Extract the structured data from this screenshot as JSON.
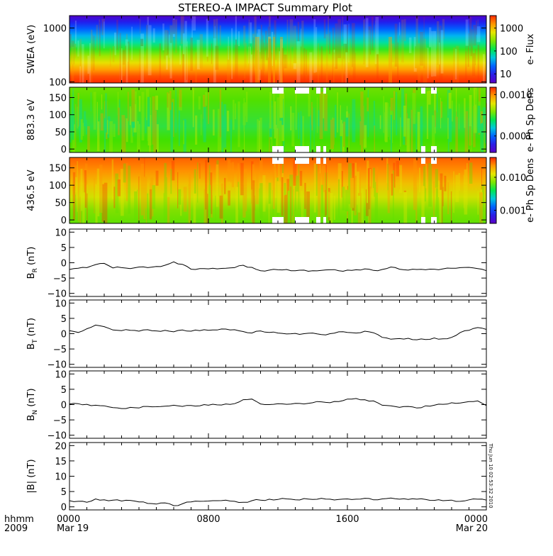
{
  "title": "STEREO-A IMPACT Summary Plot",
  "stamp": "Thu Jun 10 02:53:32 2010",
  "colors": {
    "ink": "#000000",
    "background": "#ffffff",
    "colormap": [
      "#5a00c8",
      "#2a1ee6",
      "#0064ff",
      "#00c8dc",
      "#00e650",
      "#7ee600",
      "#e6e600",
      "#ff9600",
      "#ff2800"
    ]
  },
  "x_axis": {
    "corner_top": "hhmm",
    "corner_bottom": "2009",
    "ticks": [
      {
        "value": 0,
        "top": "0000",
        "bottom": "Mar 19"
      },
      {
        "value": 8,
        "top": "0800",
        "bottom": ""
      },
      {
        "value": 16,
        "top": "1600",
        "bottom": ""
      },
      {
        "value": 24,
        "top": "0000",
        "bottom": "Mar 20"
      }
    ],
    "range": [
      0,
      24
    ]
  },
  "chart_data": [
    {
      "type": "heatmap",
      "ylabel": "SWEA (eV)",
      "yscale": "log",
      "ylim": [
        95,
        1700
      ],
      "yticks": [
        {
          "value": 100,
          "label": "100"
        },
        {
          "value": 1000,
          "label": "1000"
        }
      ],
      "colorbar_label": "e- Flux",
      "colorbar_scale": "log",
      "colorbar_range": [
        4,
        3500
      ],
      "colorbar_ticks": [
        {
          "value": 10,
          "label": "10"
        },
        {
          "value": 100,
          "label": "100"
        },
        {
          "value": 1000,
          "label": "1000"
        }
      ]
    },
    {
      "type": "heatmap",
      "ylabel": "883.3 eV",
      "ylim": [
        -10,
        180
      ],
      "yticks": [
        {
          "value": 0,
          "label": "0"
        },
        {
          "value": 50,
          "label": "50"
        },
        {
          "value": 100,
          "label": "100"
        },
        {
          "value": 150,
          "label": "150"
        }
      ],
      "colorbar_label": "e- Ph Sp Dens",
      "colorbar_scale": "log",
      "colorbar_range": [
        4e-05,
        0.0015
      ],
      "colorbar_ticks": [
        {
          "value": 0.0001,
          "label": "0.0001"
        },
        {
          "value": 0.001,
          "label": "0.0010"
        }
      ]
    },
    {
      "type": "heatmap",
      "ylabel": "436.5 eV",
      "ylim": [
        -10,
        180
      ],
      "yticks": [
        {
          "value": 0,
          "label": "0"
        },
        {
          "value": 50,
          "label": "50"
        },
        {
          "value": 100,
          "label": "100"
        },
        {
          "value": 150,
          "label": "150"
        }
      ],
      "colorbar_label": "e- Ph Sp Dens",
      "colorbar_scale": "log",
      "colorbar_range": [
        0.0004,
        0.04
      ],
      "colorbar_ticks": [
        {
          "value": 0.001,
          "label": "0.001"
        },
        {
          "value": 0.01,
          "label": "0.010"
        }
      ]
    },
    {
      "type": "line",
      "ylabel": "B_R (nT)",
      "ylabel_main": "B",
      "ylabel_sub": "R",
      "ylabel_unit": " (nT)",
      "ylim": [
        -11,
        11
      ],
      "yticks": [
        {
          "value": -10,
          "label": "−10"
        },
        {
          "value": -5,
          "label": "−5"
        },
        {
          "value": 0,
          "label": "0"
        },
        {
          "value": 5,
          "label": "5"
        },
        {
          "value": 10,
          "label": "10"
        }
      ],
      "x": [
        0,
        0.5,
        1,
        1.5,
        2,
        2.5,
        3,
        3.5,
        4,
        4.5,
        5,
        5.5,
        6,
        6.5,
        7,
        7.5,
        8,
        8.5,
        9,
        9.5,
        10,
        10.5,
        11,
        11.5,
        12,
        12.5,
        13,
        13.5,
        14,
        14.5,
        15,
        15.5,
        16,
        16.5,
        17,
        17.5,
        18,
        18.5,
        19,
        19.5,
        20,
        20.5,
        21,
        21.5,
        22,
        22.5,
        23,
        23.5,
        24
      ],
      "y": [
        -2.2,
        -1.8,
        -1.6,
        -0.6,
        -0.2,
        -1.7,
        -1.6,
        -1.9,
        -1.4,
        -1.6,
        -1.2,
        -0.8,
        0.3,
        -0.5,
        -2.1,
        -1.9,
        -2.0,
        -2.0,
        -1.8,
        -1.6,
        -0.8,
        -1.5,
        -2.6,
        -2.4,
        -2.3,
        -2.2,
        -2.6,
        -2.4,
        -2.6,
        -2.5,
        -2.3,
        -2.6,
        -2.4,
        -2.3,
        -2.0,
        -2.5,
        -2.2,
        -1.4,
        -2.1,
        -2.4,
        -2.2,
        -2.3,
        -2.1,
        -2.0,
        -1.8,
        -1.6,
        -1.5,
        -1.9,
        -2.6
      ]
    },
    {
      "type": "line",
      "ylabel": "B_T (nT)",
      "ylabel_main": "B",
      "ylabel_sub": "T",
      "ylabel_unit": " (nT)",
      "ylim": [
        -11,
        11
      ],
      "yticks": [
        {
          "value": -10,
          "label": "−10"
        },
        {
          "value": -5,
          "label": "−5"
        },
        {
          "value": 0,
          "label": "0"
        },
        {
          "value": 5,
          "label": "5"
        },
        {
          "value": 10,
          "label": "10"
        }
      ],
      "x": [
        0,
        0.5,
        1,
        1.5,
        2,
        2.5,
        3,
        3.5,
        4,
        4.5,
        5,
        5.5,
        6,
        6.5,
        7,
        7.5,
        8,
        8.5,
        9,
        9.5,
        10,
        10.5,
        11,
        11.5,
        12,
        12.5,
        13,
        13.5,
        14,
        14.5,
        15,
        15.5,
        16,
        16.5,
        17,
        17.5,
        18,
        18.5,
        19,
        19.5,
        20,
        20.5,
        21,
        21.5,
        22,
        22.5,
        23,
        23.5,
        24
      ],
      "y": [
        1.0,
        0.4,
        1.6,
        2.8,
        2.3,
        1.2,
        1.0,
        1.1,
        0.8,
        1.3,
        0.9,
        1.1,
        0.6,
        1.2,
        0.8,
        1.0,
        1.1,
        1.2,
        1.5,
        1.3,
        0.7,
        0.2,
        0.9,
        0.4,
        0.2,
        -0.1,
        0.1,
        0.0,
        0.2,
        -0.3,
        0.0,
        0.6,
        0.4,
        0.2,
        0.8,
        0.3,
        -1.2,
        -1.8,
        -1.6,
        -1.5,
        -2.0,
        -1.9,
        -1.4,
        -1.7,
        -1.2,
        0.4,
        1.1,
        2.0,
        1.4
      ]
    },
    {
      "type": "line",
      "ylabel": "B_N (nT)",
      "ylabel_main": "B",
      "ylabel_sub": "N",
      "ylabel_unit": " (nT)",
      "ylim": [
        -11,
        11
      ],
      "yticks": [
        {
          "value": -10,
          "label": "−10"
        },
        {
          "value": -5,
          "label": "−5"
        },
        {
          "value": 0,
          "label": "0"
        },
        {
          "value": 5,
          "label": "5"
        },
        {
          "value": 10,
          "label": "10"
        }
      ],
      "x": [
        0,
        0.5,
        1,
        1.5,
        2,
        2.5,
        3,
        3.5,
        4,
        4.5,
        5,
        5.5,
        6,
        6.5,
        7,
        7.5,
        8,
        8.5,
        9,
        9.5,
        10,
        10.5,
        11,
        11.5,
        12,
        12.5,
        13,
        13.5,
        14,
        14.5,
        15,
        15.5,
        16,
        16.5,
        17,
        17.5,
        18,
        18.5,
        19,
        19.5,
        20,
        20.5,
        21,
        21.5,
        22,
        22.5,
        23,
        23.5,
        24
      ],
      "y": [
        0.2,
        0.3,
        0.1,
        -0.2,
        -0.4,
        -1.0,
        -1.3,
        -0.9,
        -1.1,
        -0.6,
        -0.7,
        -0.5,
        -0.2,
        -0.6,
        -0.3,
        -0.4,
        -0.2,
        -0.1,
        0.2,
        0.3,
        1.6,
        1.8,
        0.2,
        0.0,
        0.3,
        0.1,
        0.4,
        0.2,
        0.6,
        0.9,
        0.6,
        1.0,
        1.8,
        2.0,
        1.6,
        1.2,
        -0.2,
        -0.4,
        -0.9,
        -0.6,
        -1.1,
        -0.4,
        -0.2,
        0.1,
        0.6,
        0.5,
        1.0,
        1.2,
        -0.3
      ]
    },
    {
      "type": "line",
      "ylabel": "|B| (nT)",
      "ylabel_main": "|B|",
      "ylabel_sub": "",
      "ylabel_unit": " (nT)",
      "ylim": [
        -1,
        21
      ],
      "yticks": [
        {
          "value": 0,
          "label": "0"
        },
        {
          "value": 5,
          "label": "5"
        },
        {
          "value": 10,
          "label": "10"
        },
        {
          "value": 15,
          "label": "15"
        },
        {
          "value": 20,
          "label": "20"
        }
      ],
      "x": [
        0,
        0.5,
        1,
        1.5,
        2,
        2.5,
        3,
        3.5,
        4,
        4.5,
        5,
        5.5,
        6,
        6.5,
        7,
        7.5,
        8,
        8.5,
        9,
        9.5,
        10,
        10.5,
        11,
        11.5,
        12,
        12.5,
        13,
        13.5,
        14,
        14.5,
        15,
        15.5,
        16,
        16.5,
        17,
        17.5,
        18,
        18.5,
        19,
        19.5,
        20,
        20.5,
        21,
        21.5,
        22,
        22.5,
        23,
        23.5,
        24
      ],
      "y": [
        2.0,
        1.8,
        1.5,
        2.6,
        2.3,
        2.2,
        1.9,
        2.1,
        1.6,
        1.1,
        0.9,
        1.3,
        0.4,
        1.0,
        1.6,
        1.8,
        1.9,
        2.0,
        2.2,
        1.8,
        1.5,
        2.0,
        2.2,
        2.5,
        2.4,
        2.6,
        2.3,
        2.7,
        2.4,
        2.8,
        2.5,
        2.4,
        2.6,
        2.5,
        2.8,
        2.3,
        2.6,
        2.9,
        2.5,
        2.4,
        2.5,
        2.4,
        2.1,
        2.0,
        2.2,
        1.8,
        2.3,
        2.5,
        2.2
      ]
    }
  ]
}
